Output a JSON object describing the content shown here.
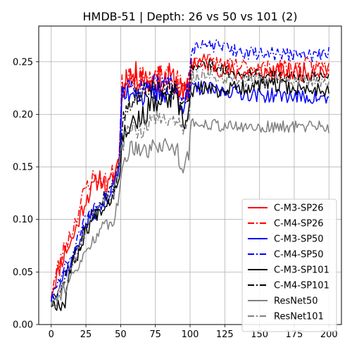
{
  "chart_data": {
    "type": "line",
    "title": "HMDB-51 | Depth: 26 vs 50 vs 101 (2)",
    "xlabel": "",
    "ylabel": "",
    "xlim": [
      -9,
      209
    ],
    "ylim": [
      0,
      0.284
    ],
    "xticks": [
      0,
      25,
      50,
      75,
      100,
      125,
      150,
      175,
      200
    ],
    "yticks": [
      0.0,
      0.05,
      0.1,
      0.15,
      0.2,
      0.25
    ],
    "ytick_labels": [
      "0.00",
      "0.05",
      "0.10",
      "0.15",
      "0.20",
      "0.25"
    ],
    "grid": true,
    "legend_position": "lower-right",
    "series": [
      {
        "name": "C-M3-SP26",
        "color": "#ff0000",
        "dash": "solid",
        "anchors": [
          [
            0,
            0.03
          ],
          [
            5,
            0.05
          ],
          [
            10,
            0.07
          ],
          [
            15,
            0.08
          ],
          [
            20,
            0.1
          ],
          [
            25,
            0.12
          ],
          [
            30,
            0.13
          ],
          [
            35,
            0.14
          ],
          [
            40,
            0.13
          ],
          [
            45,
            0.14
          ],
          [
            49,
            0.16
          ],
          [
            51,
            0.22
          ],
          [
            55,
            0.24
          ],
          [
            60,
            0.235
          ],
          [
            65,
            0.24
          ],
          [
            70,
            0.23
          ],
          [
            75,
            0.235
          ],
          [
            80,
            0.23
          ],
          [
            85,
            0.235
          ],
          [
            90,
            0.232
          ],
          [
            95,
            0.215
          ],
          [
            99,
            0.225
          ],
          [
            101,
            0.25
          ],
          [
            110,
            0.25
          ],
          [
            120,
            0.245
          ],
          [
            130,
            0.24
          ],
          [
            140,
            0.24
          ],
          [
            150,
            0.24
          ],
          [
            160,
            0.24
          ],
          [
            170,
            0.24
          ],
          [
            180,
            0.24
          ],
          [
            190,
            0.242
          ],
          [
            200,
            0.24
          ]
        ],
        "noise": 0.009,
        "seed": 11
      },
      {
        "name": "C-M4-SP26",
        "color": "#ff0000",
        "dash": "dashdot",
        "anchors": [
          [
            0,
            0.03
          ],
          [
            5,
            0.055
          ],
          [
            10,
            0.075
          ],
          [
            15,
            0.09
          ],
          [
            20,
            0.11
          ],
          [
            25,
            0.13
          ],
          [
            30,
            0.14
          ],
          [
            35,
            0.14
          ],
          [
            40,
            0.135
          ],
          [
            45,
            0.145
          ],
          [
            49,
            0.16
          ],
          [
            51,
            0.225
          ],
          [
            55,
            0.24
          ],
          [
            60,
            0.238
          ],
          [
            65,
            0.23
          ],
          [
            70,
            0.235
          ],
          [
            75,
            0.23
          ],
          [
            80,
            0.235
          ],
          [
            85,
            0.23
          ],
          [
            90,
            0.232
          ],
          [
            95,
            0.22
          ],
          [
            99,
            0.228
          ],
          [
            101,
            0.25
          ],
          [
            110,
            0.252
          ],
          [
            120,
            0.248
          ],
          [
            130,
            0.245
          ],
          [
            140,
            0.245
          ],
          [
            150,
            0.245
          ],
          [
            160,
            0.242
          ],
          [
            170,
            0.245
          ],
          [
            180,
            0.245
          ],
          [
            190,
            0.245
          ],
          [
            200,
            0.245
          ]
        ],
        "noise": 0.009,
        "seed": 23
      },
      {
        "name": "C-M3-SP50",
        "color": "#0000ff",
        "dash": "solid",
        "anchors": [
          [
            0,
            0.025
          ],
          [
            5,
            0.035
          ],
          [
            10,
            0.05
          ],
          [
            15,
            0.06
          ],
          [
            20,
            0.08
          ],
          [
            25,
            0.095
          ],
          [
            30,
            0.105
          ],
          [
            35,
            0.11
          ],
          [
            40,
            0.12
          ],
          [
            45,
            0.13
          ],
          [
            49,
            0.15
          ],
          [
            51,
            0.215
          ],
          [
            55,
            0.22
          ],
          [
            60,
            0.225
          ],
          [
            65,
            0.215
          ],
          [
            70,
            0.22
          ],
          [
            75,
            0.22
          ],
          [
            80,
            0.222
          ],
          [
            85,
            0.22
          ],
          [
            90,
            0.22
          ],
          [
            95,
            0.21
          ],
          [
            99,
            0.215
          ],
          [
            101,
            0.225
          ],
          [
            110,
            0.225
          ],
          [
            120,
            0.222
          ],
          [
            130,
            0.222
          ],
          [
            140,
            0.22
          ],
          [
            150,
            0.218
          ],
          [
            160,
            0.218
          ],
          [
            170,
            0.218
          ],
          [
            180,
            0.216
          ],
          [
            190,
            0.216
          ],
          [
            200,
            0.214
          ]
        ],
        "noise": 0.007,
        "seed": 37
      },
      {
        "name": "C-M4-SP50",
        "color": "#0000ff",
        "dash": "dashdot",
        "anchors": [
          [
            0,
            0.025
          ],
          [
            5,
            0.04
          ],
          [
            10,
            0.055
          ],
          [
            15,
            0.065
          ],
          [
            20,
            0.085
          ],
          [
            25,
            0.1
          ],
          [
            30,
            0.11
          ],
          [
            35,
            0.115
          ],
          [
            40,
            0.125
          ],
          [
            45,
            0.135
          ],
          [
            49,
            0.155
          ],
          [
            51,
            0.225
          ],
          [
            55,
            0.23
          ],
          [
            60,
            0.228
          ],
          [
            65,
            0.225
          ],
          [
            70,
            0.23
          ],
          [
            75,
            0.228
          ],
          [
            80,
            0.23
          ],
          [
            85,
            0.228
          ],
          [
            90,
            0.228
          ],
          [
            95,
            0.22
          ],
          [
            99,
            0.224
          ],
          [
            101,
            0.262
          ],
          [
            110,
            0.265
          ],
          [
            120,
            0.265
          ],
          [
            130,
            0.262
          ],
          [
            140,
            0.258
          ],
          [
            150,
            0.258
          ],
          [
            160,
            0.258
          ],
          [
            170,
            0.257
          ],
          [
            180,
            0.256
          ],
          [
            190,
            0.256
          ],
          [
            200,
            0.258
          ]
        ],
        "noise": 0.006,
        "seed": 51
      },
      {
        "name": "C-M3-SP101",
        "color": "#000000",
        "dash": "solid",
        "anchors": [
          [
            0,
            0.02
          ],
          [
            5,
            0.02
          ],
          [
            10,
            0.02
          ],
          [
            12,
            0.045
          ],
          [
            15,
            0.055
          ],
          [
            20,
            0.07
          ],
          [
            25,
            0.09
          ],
          [
            30,
            0.1
          ],
          [
            35,
            0.11
          ],
          [
            40,
            0.115
          ],
          [
            45,
            0.125
          ],
          [
            49,
            0.145
          ],
          [
            51,
            0.175
          ],
          [
            55,
            0.19
          ],
          [
            60,
            0.195
          ],
          [
            65,
            0.195
          ],
          [
            70,
            0.205
          ],
          [
            75,
            0.21
          ],
          [
            80,
            0.212
          ],
          [
            85,
            0.215
          ],
          [
            90,
            0.215
          ],
          [
            95,
            0.19
          ],
          [
            99,
            0.2
          ],
          [
            101,
            0.222
          ],
          [
            110,
            0.225
          ],
          [
            120,
            0.222
          ],
          [
            130,
            0.225
          ],
          [
            140,
            0.226
          ],
          [
            150,
            0.228
          ],
          [
            160,
            0.228
          ],
          [
            170,
            0.226
          ],
          [
            180,
            0.224
          ],
          [
            190,
            0.224
          ],
          [
            200,
            0.224
          ]
        ],
        "noise": 0.007,
        "seed": 67
      },
      {
        "name": "C-M4-SP101",
        "color": "#000000",
        "dash": "dashdot",
        "anchors": [
          [
            0,
            0.02
          ],
          [
            5,
            0.03
          ],
          [
            10,
            0.045
          ],
          [
            15,
            0.06
          ],
          [
            20,
            0.075
          ],
          [
            25,
            0.095
          ],
          [
            30,
            0.105
          ],
          [
            35,
            0.115
          ],
          [
            40,
            0.125
          ],
          [
            45,
            0.13
          ],
          [
            49,
            0.15
          ],
          [
            51,
            0.19
          ],
          [
            55,
            0.21
          ],
          [
            60,
            0.215
          ],
          [
            65,
            0.22
          ],
          [
            70,
            0.225
          ],
          [
            75,
            0.225
          ],
          [
            80,
            0.225
          ],
          [
            85,
            0.222
          ],
          [
            90,
            0.222
          ],
          [
            95,
            0.205
          ],
          [
            99,
            0.215
          ],
          [
            101,
            0.245
          ],
          [
            110,
            0.248
          ],
          [
            120,
            0.245
          ],
          [
            130,
            0.24
          ],
          [
            140,
            0.238
          ],
          [
            150,
            0.238
          ],
          [
            160,
            0.236
          ],
          [
            170,
            0.235
          ],
          [
            180,
            0.235
          ],
          [
            190,
            0.236
          ],
          [
            200,
            0.238
          ]
        ],
        "noise": 0.006,
        "seed": 79
      },
      {
        "name": "ResNet50",
        "color": "#808080",
        "dash": "solid",
        "anchors": [
          [
            0,
            0.02
          ],
          [
            5,
            0.025
          ],
          [
            10,
            0.035
          ],
          [
            15,
            0.045
          ],
          [
            20,
            0.055
          ],
          [
            25,
            0.07
          ],
          [
            30,
            0.08
          ],
          [
            35,
            0.09
          ],
          [
            40,
            0.095
          ],
          [
            45,
            0.1
          ],
          [
            49,
            0.12
          ],
          [
            51,
            0.15
          ],
          [
            55,
            0.165
          ],
          [
            60,
            0.17
          ],
          [
            65,
            0.17
          ],
          [
            70,
            0.165
          ],
          [
            75,
            0.172
          ],
          [
            80,
            0.17
          ],
          [
            85,
            0.17
          ],
          [
            90,
            0.168
          ],
          [
            95,
            0.15
          ],
          [
            99,
            0.165
          ],
          [
            101,
            0.19
          ],
          [
            110,
            0.192
          ],
          [
            120,
            0.19
          ],
          [
            130,
            0.188
          ],
          [
            140,
            0.188
          ],
          [
            150,
            0.188
          ],
          [
            160,
            0.188
          ],
          [
            170,
            0.188
          ],
          [
            180,
            0.188
          ],
          [
            190,
            0.19
          ],
          [
            200,
            0.188
          ]
        ],
        "noise": 0.006,
        "seed": 91
      },
      {
        "name": "ResNet101",
        "color": "#808080",
        "dash": "dashdot",
        "anchors": [
          [
            0,
            0.02
          ],
          [
            5,
            0.03
          ],
          [
            10,
            0.04
          ],
          [
            15,
            0.055
          ],
          [
            20,
            0.07
          ],
          [
            25,
            0.09
          ],
          [
            30,
            0.1
          ],
          [
            35,
            0.11
          ],
          [
            40,
            0.12
          ],
          [
            45,
            0.125
          ],
          [
            49,
            0.145
          ],
          [
            51,
            0.17
          ],
          [
            55,
            0.18
          ],
          [
            60,
            0.185
          ],
          [
            65,
            0.185
          ],
          [
            70,
            0.19
          ],
          [
            75,
            0.195
          ],
          [
            80,
            0.198
          ],
          [
            85,
            0.195
          ],
          [
            90,
            0.195
          ],
          [
            95,
            0.18
          ],
          [
            99,
            0.19
          ],
          [
            101,
            0.235
          ],
          [
            110,
            0.238
          ],
          [
            120,
            0.235
          ],
          [
            130,
            0.235
          ],
          [
            140,
            0.232
          ],
          [
            150,
            0.232
          ],
          [
            160,
            0.232
          ],
          [
            170,
            0.232
          ],
          [
            180,
            0.232
          ],
          [
            190,
            0.232
          ],
          [
            200,
            0.232
          ]
        ],
        "noise": 0.006,
        "seed": 103
      }
    ]
  }
}
